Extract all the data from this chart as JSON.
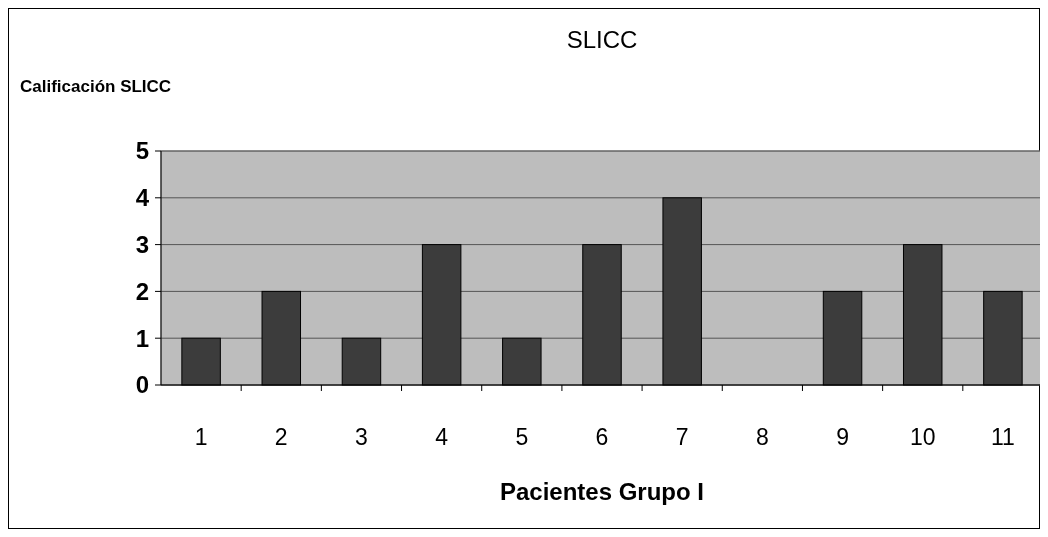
{
  "chart_data": {
    "type": "bar",
    "title": "SLICC",
    "ylabel": "Calificación SLICC",
    "xlabel": "Pacientes Grupo I",
    "categories": [
      "1",
      "2",
      "3",
      "4",
      "5",
      "6",
      "7",
      "8",
      "9",
      "10",
      "11"
    ],
    "values": [
      1,
      2,
      1,
      3,
      1,
      3,
      4,
      0,
      2,
      3,
      2
    ],
    "color": "#3c3c3c",
    "ylim": [
      0,
      5
    ],
    "yticks": [
      0,
      1,
      2,
      3,
      4,
      5
    ],
    "grid": "y"
  }
}
